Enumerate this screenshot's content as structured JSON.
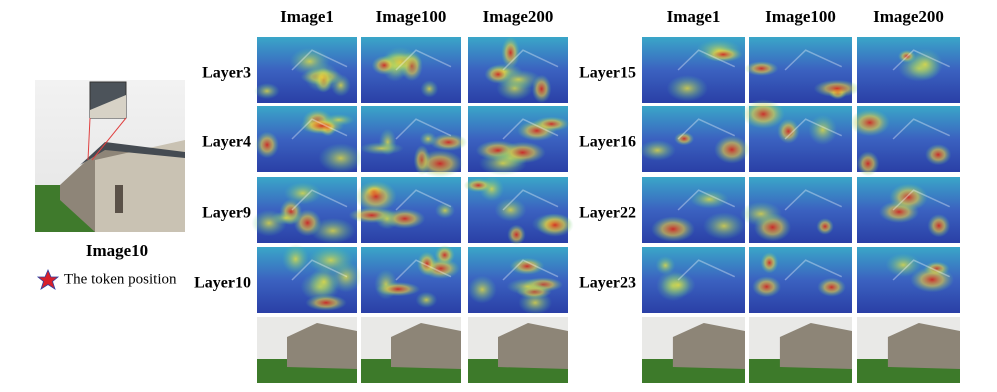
{
  "left": {
    "caption": "Image10",
    "legend": "The token position"
  },
  "panels": [
    {
      "columns": [
        "Image1",
        "Image100",
        "Image200"
      ],
      "rows": [
        "Layer3",
        "Layer4",
        "Layer9",
        "Layer10"
      ]
    },
    {
      "columns": [
        "Image1",
        "Image100",
        "Image200"
      ],
      "rows": [
        "Layer15",
        "Layer16",
        "Layer22",
        "Layer23"
      ]
    }
  ]
}
